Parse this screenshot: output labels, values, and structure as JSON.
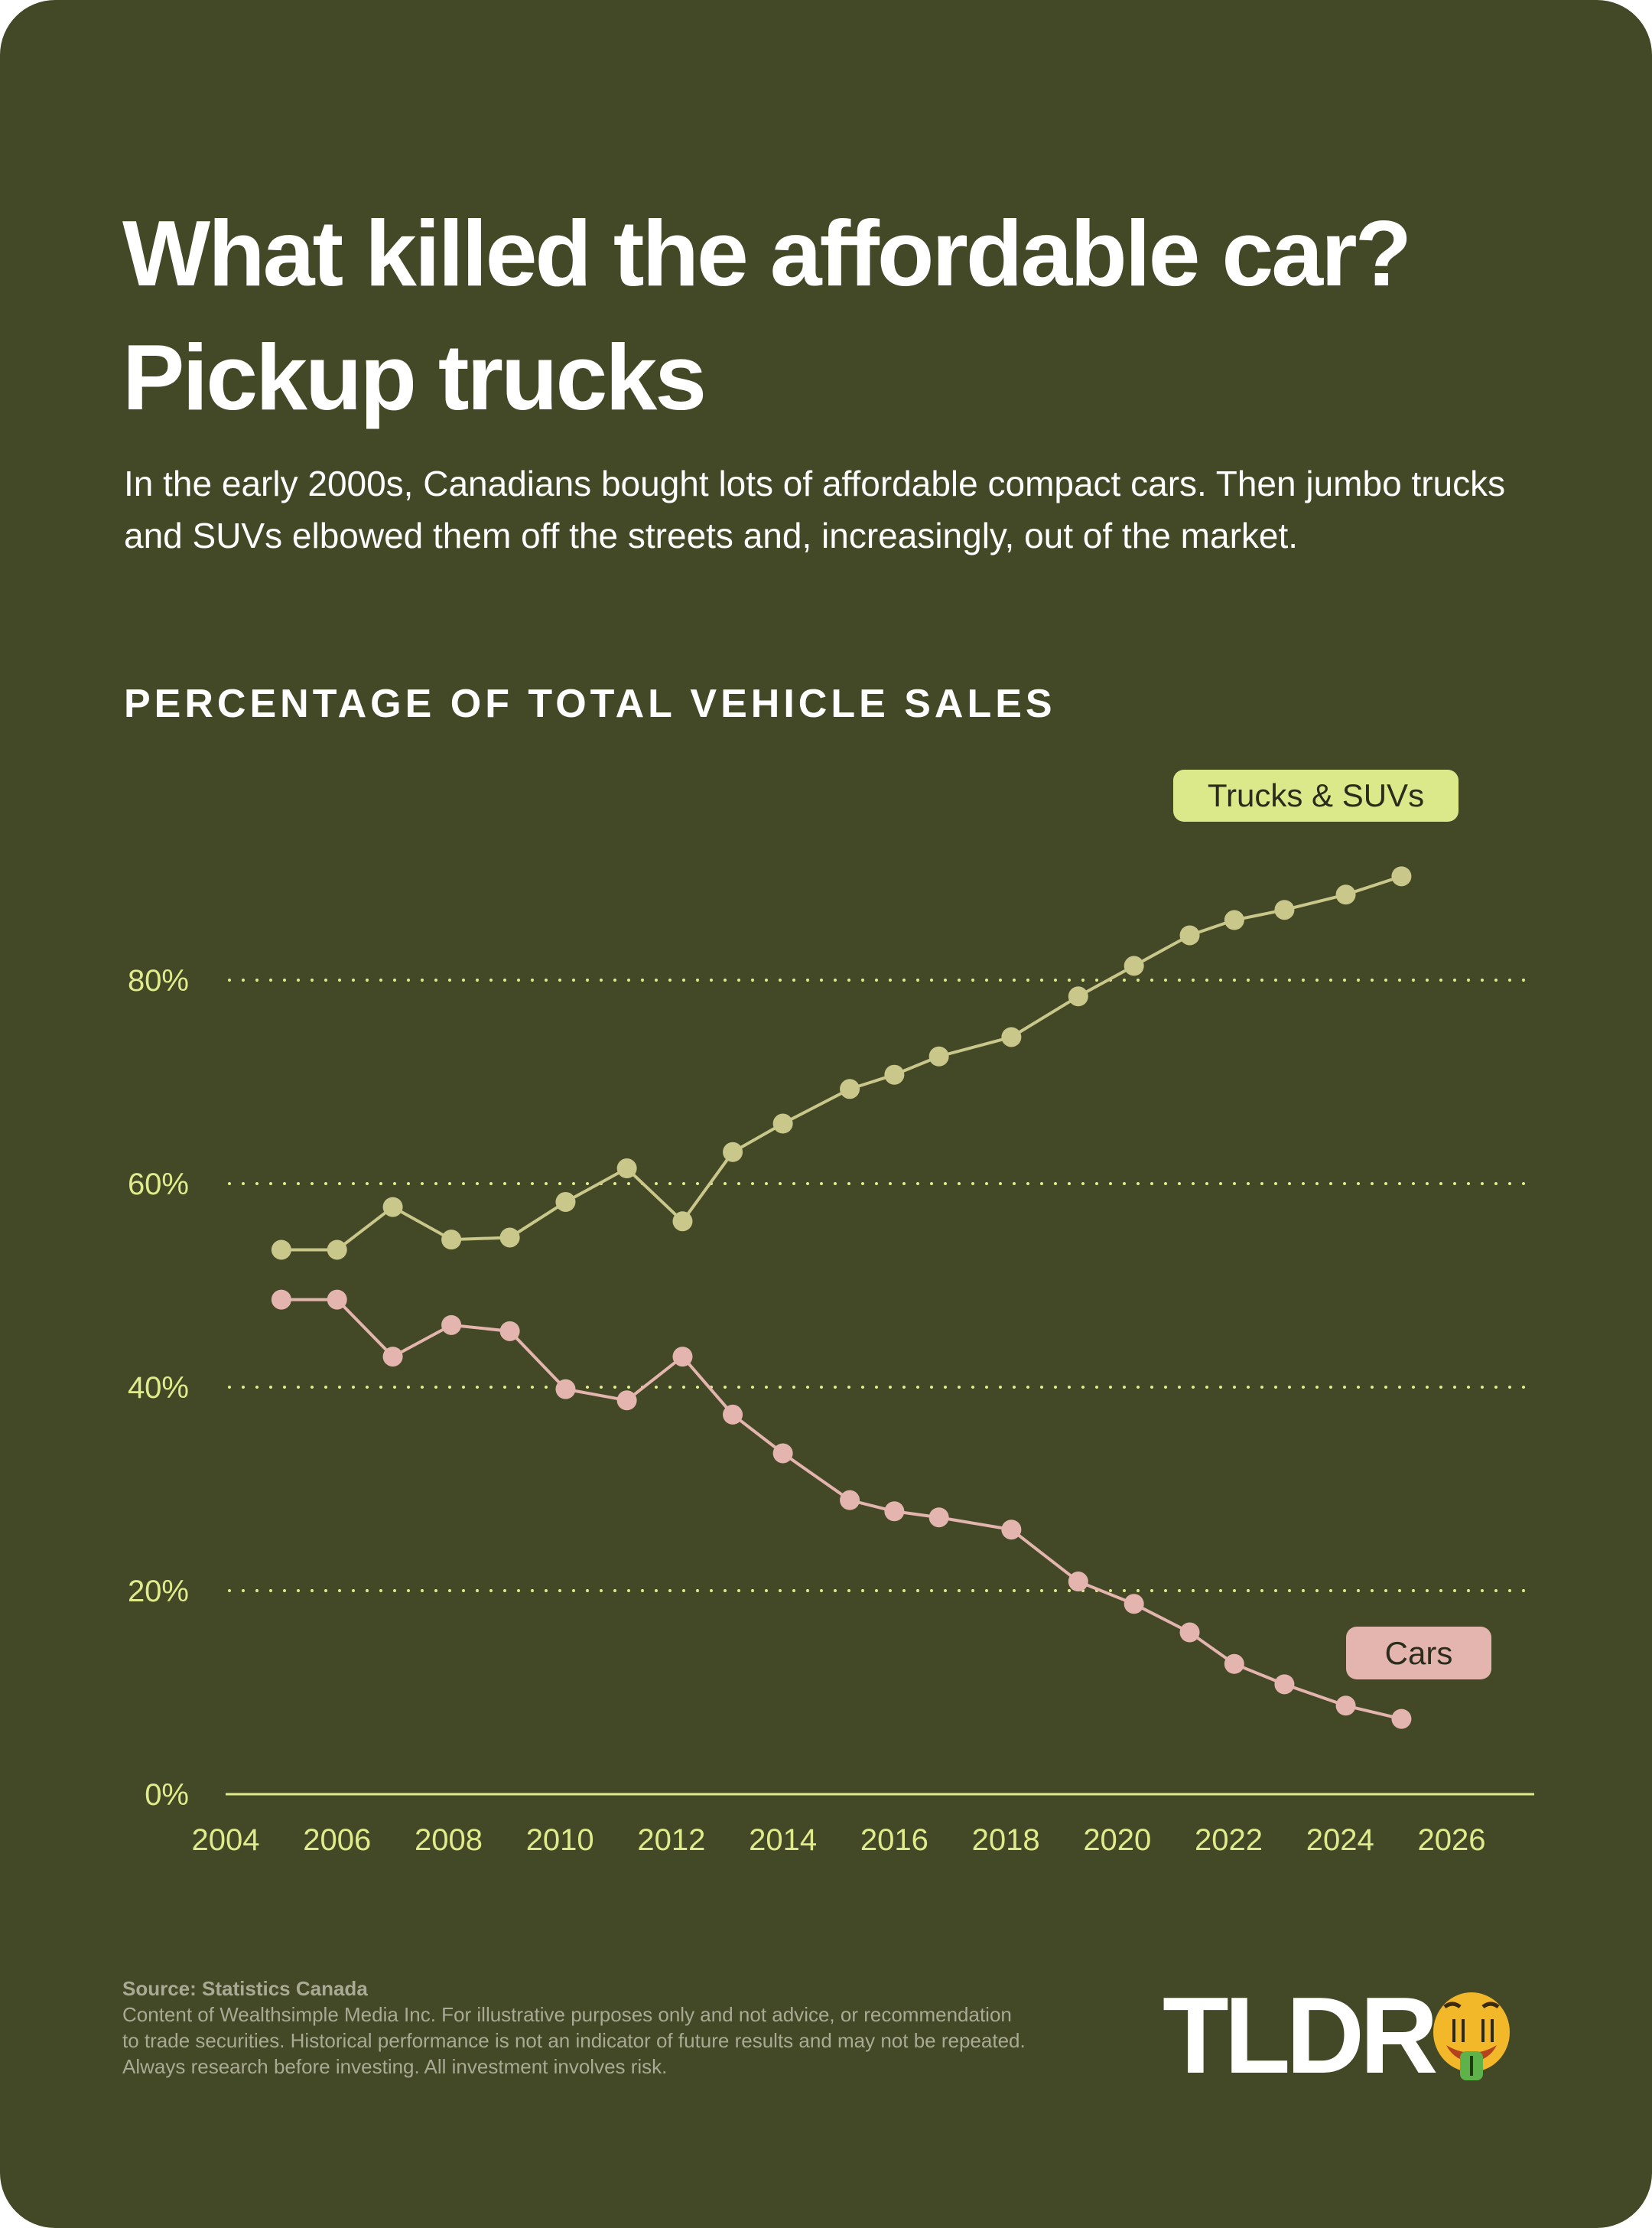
{
  "title_line1": "What killed the affordable car?",
  "title_line2": "Pickup trucks",
  "subtitle": "In the early 2000s, Canadians bought lots of affordable compact cars. Then jumbo trucks and SUVs elbowed them off the streets and, increasingly, out of the market.",
  "section_title": "PERCENTAGE OF TOTAL VEHICLE SALES",
  "footer": {
    "source": "Source: Statistics Canada",
    "disclaimer_1": "Content of Wealthsimple Media Inc. For illustrative purposes only and not advice, or recommendation",
    "disclaimer_2": "to trade securities. Historical performance is not an indicator of future results and may not be repeated.",
    "disclaimer_3": "Always research before investing. All investment involves risk."
  },
  "logo": {
    "text": "TLDR",
    "emoji": "money-mouth-face"
  },
  "colors": {
    "background": "#434927",
    "trucks": "#c9c78a",
    "trucks_label": "#dbe98a",
    "cars": "#e3b5ae",
    "axis": "#e0ec8c"
  },
  "chart_data": {
    "type": "line",
    "title": "PERCENTAGE OF TOTAL VEHICLE SALES",
    "xlim": [
      2004,
      2026
    ],
    "ylim": [
      0,
      90
    ],
    "x_ticks": [
      "2004",
      "2006",
      "2008",
      "2010",
      "2012",
      "2014",
      "2016",
      "2018",
      "2020",
      "2022",
      "2024",
      "2026"
    ],
    "y_ticks": [
      "0%",
      "20%",
      "40%",
      "60%",
      "80%"
    ],
    "grid": "horizontal dotted",
    "series": [
      {
        "name": "Trucks & SUVs",
        "x": [
          2005.0,
          2006.0,
          2007.0,
          2008.05,
          2009.1,
          2010.1,
          2011.2,
          2012.2,
          2013.1,
          2014.0,
          2015.2,
          2016.0,
          2016.8,
          2018.1,
          2019.3,
          2020.3,
          2021.3,
          2022.1,
          2023.0,
          2024.1,
          2025.1
        ],
        "y": [
          53.5,
          53.5,
          57.7,
          54.5,
          54.7,
          58.2,
          61.5,
          56.3,
          63.1,
          65.9,
          69.3,
          70.7,
          72.5,
          74.4,
          78.4,
          81.4,
          84.4,
          85.9,
          86.9,
          88.4,
          90.2
        ]
      },
      {
        "name": "Cars",
        "x": [
          2005.0,
          2006.0,
          2007.0,
          2008.05,
          2009.1,
          2010.1,
          2011.2,
          2012.2,
          2013.1,
          2014.0,
          2015.2,
          2016.0,
          2016.8,
          2018.1,
          2019.3,
          2020.3,
          2021.3,
          2022.1,
          2023.0,
          2024.1,
          2025.1
        ],
        "y": [
          48.6,
          48.6,
          43.0,
          46.1,
          45.5,
          39.8,
          38.7,
          43.0,
          37.3,
          33.5,
          28.9,
          27.8,
          27.2,
          26.0,
          20.9,
          18.7,
          15.9,
          12.8,
          10.8,
          8.7,
          7.4
        ]
      }
    ]
  }
}
